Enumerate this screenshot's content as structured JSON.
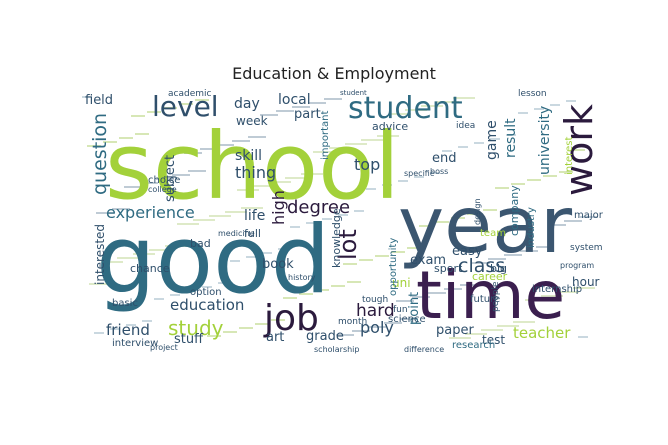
{
  "title": "Education & Employment",
  "palette": {
    "lime": "#a3d13a",
    "teal": "#2f6b82",
    "slate": "#3b5670",
    "purple": "#3b1f4f",
    "dark": "#2b1a3d"
  },
  "words": [
    {
      "text": "school",
      "color": "#a3d13a"
    },
    {
      "text": "good",
      "color": "#2f6b82"
    },
    {
      "text": "year",
      "color": "#3b5670"
    },
    {
      "text": "time",
      "color": "#3b1f4f"
    },
    {
      "text": "student",
      "color": "#2f6b82"
    },
    {
      "text": "work",
      "color": "#2b1a3d"
    },
    {
      "text": "level",
      "color": "#2f4f6b"
    },
    {
      "text": "job",
      "color": "#2b1a3d"
    },
    {
      "text": "study",
      "color": "#a3d13a"
    },
    {
      "text": "experience",
      "color": "#2f6b82"
    },
    {
      "text": "question",
      "color": "#2f6b82"
    },
    {
      "text": "lot",
      "color": "#2b1a3d"
    },
    {
      "text": "class",
      "color": "#2f4f6b"
    },
    {
      "text": "degree",
      "color": "#2b1a3d"
    },
    {
      "text": "education",
      "color": "#2f4f6b"
    },
    {
      "text": "friend",
      "color": "#2f4f6b"
    },
    {
      "text": "teacher",
      "color": "#a3d13a"
    },
    {
      "text": "poly",
      "color": "#2f4f6b"
    },
    {
      "text": "hard",
      "color": "#2b1a3d"
    },
    {
      "text": "university",
      "color": "#2f6b82"
    },
    {
      "text": "skill",
      "color": "#2f4f6b"
    },
    {
      "text": "thing",
      "color": "#2f4f6b"
    },
    {
      "text": "top",
      "color": "#2f4f6b"
    },
    {
      "text": "life",
      "color": "#2f4f6b"
    },
    {
      "text": "day",
      "color": "#2f4f6b"
    },
    {
      "text": "local",
      "color": "#2f4f6b"
    },
    {
      "text": "part",
      "color": "#2f4f6b"
    },
    {
      "text": "field",
      "color": "#2f4f6b"
    },
    {
      "text": "week",
      "color": "#2f4f6b"
    },
    {
      "text": "subject",
      "color": "#2f4f6b"
    },
    {
      "text": "high",
      "color": "#2b1a3d"
    },
    {
      "text": "book",
      "color": "#2f4f6b"
    },
    {
      "text": "game",
      "color": "#2f4f6b"
    },
    {
      "text": "exam",
      "color": "#2f4f6b"
    },
    {
      "text": "easy",
      "color": "#2f4f6b"
    },
    {
      "text": "end",
      "color": "#2f4f6b"
    },
    {
      "text": "result",
      "color": "#2f6b82"
    },
    {
      "text": "hour",
      "color": "#2f4f6b"
    },
    {
      "text": "paper",
      "color": "#2f4f6b"
    },
    {
      "text": "test",
      "color": "#2f4f6b"
    },
    {
      "text": "grade",
      "color": "#2f4f6b"
    },
    {
      "text": "art",
      "color": "#2f4f6b"
    },
    {
      "text": "stuff",
      "color": "#2f4f6b"
    },
    {
      "text": "interested",
      "color": "#2f4f6b"
    },
    {
      "text": "sport",
      "color": "#2f4f6b"
    },
    {
      "text": "big",
      "color": "#2f4f6b"
    },
    {
      "text": "uni",
      "color": "#a3d13a"
    },
    {
      "text": "career",
      "color": "#a3d13a"
    },
    {
      "text": "point",
      "color": "#2f6b82"
    },
    {
      "text": "chance",
      "color": "#2f4f6b"
    },
    {
      "text": "interview",
      "color": "#2f4f6b"
    },
    {
      "text": "science",
      "color": "#2f4f6b"
    },
    {
      "text": "research",
      "color": "#2f6b82"
    },
    {
      "text": "future",
      "color": "#2f4f6b"
    },
    {
      "text": "advice",
      "color": "#2f4f6b"
    },
    {
      "text": "choice",
      "color": "#2f4f6b"
    },
    {
      "text": "full",
      "color": "#2f4f6b"
    },
    {
      "text": "bad",
      "color": "#2f4f6b"
    },
    {
      "text": "option",
      "color": "#2f4f6b"
    },
    {
      "text": "basic",
      "color": "#2f4f6b"
    },
    {
      "text": "team",
      "color": "#a3d13a"
    },
    {
      "text": "industry",
      "color": "#2f6b82"
    },
    {
      "text": "company",
      "color": "#2f6b82"
    },
    {
      "text": "knowledge",
      "color": "#2f4f6b"
    },
    {
      "text": "important",
      "color": "#2f6b82"
    },
    {
      "text": "opportunity",
      "color": "#2f6b82"
    },
    {
      "text": "internship",
      "color": "#2f4f6b"
    },
    {
      "text": "major",
      "color": "#2f4f6b"
    },
    {
      "text": "interest",
      "color": "#a3d13a"
    },
    {
      "text": "lesson",
      "color": "#2f4f6b"
    },
    {
      "text": "idea",
      "color": "#2f4f6b"
    },
    {
      "text": "academic",
      "color": "#2f4f6b"
    },
    {
      "text": "people",
      "color": "#2f4f6b"
    },
    {
      "text": "tough",
      "color": "#2f4f6b"
    },
    {
      "text": "month",
      "color": "#2f4f6b"
    },
    {
      "text": "fun",
      "color": "#2f4f6b"
    },
    {
      "text": "system",
      "color": "#2f4f6b"
    },
    {
      "text": "project",
      "color": "#2f4f6b"
    },
    {
      "text": "design",
      "color": "#2f4f6b"
    },
    {
      "text": "program",
      "color": "#2f4f6b"
    },
    {
      "text": "medicine",
      "color": "#2f4f6b"
    },
    {
      "text": "college",
      "color": "#2f4f6b"
    },
    {
      "text": "scholarship",
      "color": "#2f4f6b"
    },
    {
      "text": "history",
      "color": "#2f4f6b"
    },
    {
      "text": "difference",
      "color": "#2f4f6b"
    },
    {
      "text": "specific",
      "color": "#2f4f6b"
    },
    {
      "text": "boss",
      "color": "#2f4f6b"
    },
    {
      "text": "student",
      "color": "#2f4f6b"
    }
  ]
}
